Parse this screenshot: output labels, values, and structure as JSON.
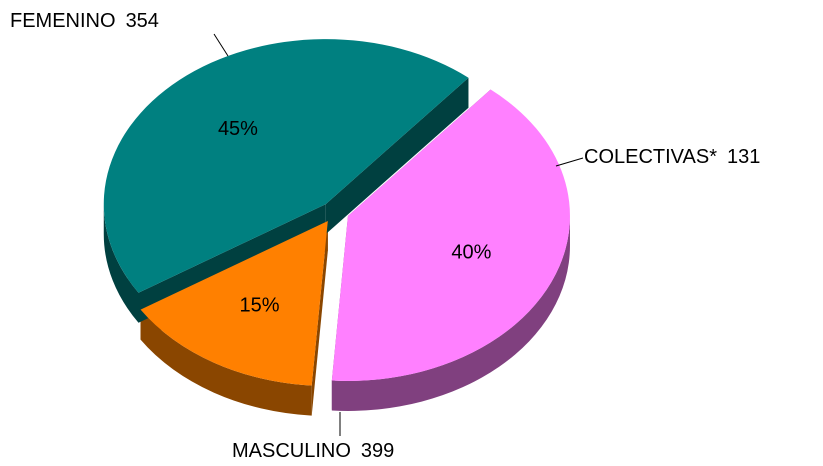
{
  "chart_data": {
    "type": "pie",
    "categories": [
      "FEMENINO",
      "COLECTIVAS*",
      "MASCULINO"
    ],
    "values": [
      354,
      131,
      399
    ],
    "percent_labels": [
      "40%",
      "15%",
      "45%"
    ],
    "colors": [
      "#ff80ff",
      "#ff8000",
      "#008080"
    ],
    "side_colors": [
      "#80407f",
      "#8a4600",
      "#004040"
    ]
  }
}
